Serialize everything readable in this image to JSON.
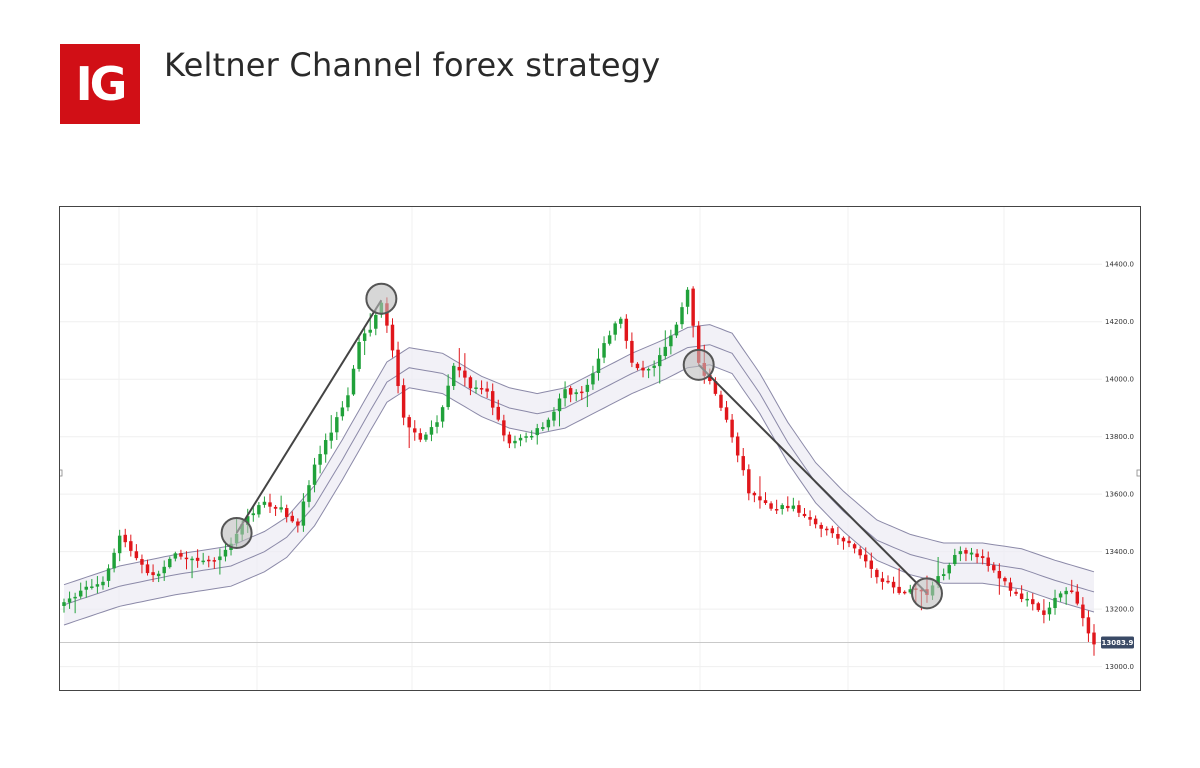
{
  "header": {
    "logo_text": "IG",
    "title": "Keltner Channel forex strategy"
  },
  "colors": {
    "up": "#20a13a",
    "down": "#e0161b",
    "channel_line": "#8b89a8",
    "channel_fill": "#ecebf3",
    "trend_line": "#444444",
    "circle_fill": "#bdbdbd",
    "price_tag": "#3a4a66",
    "brand": "#d10f16"
  },
  "chart_data": {
    "type": "candlestick",
    "title": "",
    "xlabel": "",
    "ylabel": "",
    "ylim": [
      12950,
      14460
    ],
    "yticks": [
      "13000.0",
      "13200.0",
      "13400.0",
      "13600.0",
      "13800.0",
      "14000.0",
      "14200.0",
      "14400.0"
    ],
    "ytick_values": [
      13000,
      13200,
      13400,
      13600,
      13800,
      14000,
      14200,
      14400
    ],
    "current_price": "13083.9",
    "current_price_value": 13083.9,
    "grid": true,
    "legend": "none",
    "annotations": [
      {
        "type": "trend-line",
        "from_index": 31,
        "from_price": 13465,
        "to_index": 57,
        "to_price": 14275
      },
      {
        "type": "trend-line",
        "from_index": 114,
        "from_price": 14050,
        "to_index": 155,
        "to_price": 13255
      },
      {
        "type": "circle-marker",
        "index": 31,
        "price": 13465
      },
      {
        "type": "circle-marker",
        "index": 57,
        "price": 14280
      },
      {
        "type": "circle-marker",
        "index": 114,
        "price": 14050
      },
      {
        "type": "circle-marker",
        "index": 155,
        "price": 13255
      }
    ],
    "anchors": [
      {
        "i": 0,
        "p": 13215
      },
      {
        "i": 3,
        "p": 13265
      },
      {
        "i": 7,
        "p": 13300
      },
      {
        "i": 10,
        "p": 13455
      },
      {
        "i": 13,
        "p": 13380
      },
      {
        "i": 16,
        "p": 13310
      },
      {
        "i": 20,
        "p": 13385
      },
      {
        "i": 24,
        "p": 13360
      },
      {
        "i": 28,
        "p": 13375
      },
      {
        "i": 31,
        "p": 13465
      },
      {
        "i": 35,
        "p": 13570
      },
      {
        "i": 39,
        "p": 13545
      },
      {
        "i": 42,
        "p": 13500
      },
      {
        "i": 45,
        "p": 13700
      },
      {
        "i": 48,
        "p": 13820
      },
      {
        "i": 51,
        "p": 13950
      },
      {
        "i": 53,
        "p": 14140
      },
      {
        "i": 55,
        "p": 14170
      },
      {
        "i": 57,
        "p": 14275
      },
      {
        "i": 59,
        "p": 14110
      },
      {
        "i": 61,
        "p": 13860
      },
      {
        "i": 64,
        "p": 13800
      },
      {
        "i": 67,
        "p": 13840
      },
      {
        "i": 70,
        "p": 14050
      },
      {
        "i": 73,
        "p": 13970
      },
      {
        "i": 76,
        "p": 13950
      },
      {
        "i": 80,
        "p": 13770
      },
      {
        "i": 84,
        "p": 13810
      },
      {
        "i": 87,
        "p": 13860
      },
      {
        "i": 90,
        "p": 13960
      },
      {
        "i": 93,
        "p": 13950
      },
      {
        "i": 95,
        "p": 14010
      },
      {
        "i": 97,
        "p": 14130
      },
      {
        "i": 100,
        "p": 14215
      },
      {
        "i": 102,
        "p": 14050
      },
      {
        "i": 105,
        "p": 14030
      },
      {
        "i": 108,
        "p": 14110
      },
      {
        "i": 110,
        "p": 14185
      },
      {
        "i": 112,
        "p": 14320
      },
      {
        "i": 114,
        "p": 14050
      },
      {
        "i": 117,
        "p": 13960
      },
      {
        "i": 120,
        "p": 13800
      },
      {
        "i": 123,
        "p": 13610
      },
      {
        "i": 127,
        "p": 13545
      },
      {
        "i": 130,
        "p": 13560
      },
      {
        "i": 134,
        "p": 13520
      },
      {
        "i": 138,
        "p": 13460
      },
      {
        "i": 142,
        "p": 13410
      },
      {
        "i": 146,
        "p": 13320
      },
      {
        "i": 150,
        "p": 13260
      },
      {
        "i": 153,
        "p": 13270
      },
      {
        "i": 155,
        "p": 13255
      },
      {
        "i": 158,
        "p": 13330
      },
      {
        "i": 161,
        "p": 13410
      },
      {
        "i": 164,
        "p": 13390
      },
      {
        "i": 167,
        "p": 13330
      },
      {
        "i": 170,
        "p": 13270
      },
      {
        "i": 173,
        "p": 13225
      },
      {
        "i": 176,
        "p": 13175
      },
      {
        "i": 178,
        "p": 13235
      },
      {
        "i": 181,
        "p": 13270
      },
      {
        "i": 183,
        "p": 13160
      },
      {
        "i": 185,
        "p": 13085
      }
    ],
    "channel": [
      {
        "i": 0,
        "mid": 13215
      },
      {
        "i": 10,
        "mid": 13280
      },
      {
        "i": 20,
        "mid": 13320
      },
      {
        "i": 30,
        "mid": 13350
      },
      {
        "i": 36,
        "mid": 13400
      },
      {
        "i": 40,
        "mid": 13450
      },
      {
        "i": 45,
        "mid": 13560
      },
      {
        "i": 50,
        "mid": 13720
      },
      {
        "i": 55,
        "mid": 13890
      },
      {
        "i": 58,
        "mid": 13990
      },
      {
        "i": 62,
        "mid": 14040
      },
      {
        "i": 68,
        "mid": 14020
      },
      {
        "i": 75,
        "mid": 13940
      },
      {
        "i": 80,
        "mid": 13900
      },
      {
        "i": 85,
        "mid": 13880
      },
      {
        "i": 90,
        "mid": 13900
      },
      {
        "i": 96,
        "mid": 13960
      },
      {
        "i": 102,
        "mid": 14020
      },
      {
        "i": 108,
        "mid": 14070
      },
      {
        "i": 112,
        "mid": 14110
      },
      {
        "i": 116,
        "mid": 14120
      },
      {
        "i": 120,
        "mid": 14090
      },
      {
        "i": 125,
        "mid": 13950
      },
      {
        "i": 130,
        "mid": 13780
      },
      {
        "i": 135,
        "mid": 13640
      },
      {
        "i": 140,
        "mid": 13540
      },
      {
        "i": 146,
        "mid": 13440
      },
      {
        "i": 152,
        "mid": 13390
      },
      {
        "i": 158,
        "mid": 13360
      },
      {
        "i": 165,
        "mid": 13360
      },
      {
        "i": 172,
        "mid": 13340
      },
      {
        "i": 178,
        "mid": 13300
      },
      {
        "i": 185,
        "mid": 13260
      }
    ],
    "channel_halfwidth": 70
  }
}
